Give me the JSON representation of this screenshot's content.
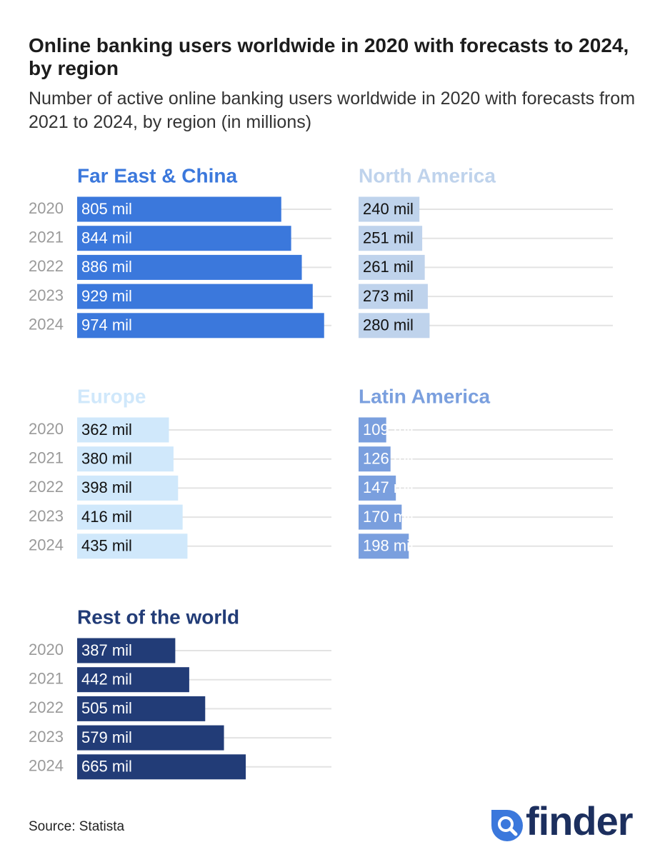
{
  "title": "Online banking users worldwide in 2020 with forecasts to 2024, by region",
  "subtitle": "Number of active online banking users worldwide in 2020 with forecasts from 2021 to 2024, by region (in millions)",
  "source": "Source: Statista",
  "brand": {
    "name": "finder",
    "color": "#1c2f5e",
    "icon": "search-magnifier-icon"
  },
  "chart_data": [
    {
      "type": "bar",
      "title": "Far East & China",
      "color": "#3b78dc",
      "label_color": "#ffffff",
      "categories": [
        "2020",
        "2021",
        "2022",
        "2023",
        "2024"
      ],
      "values": [
        805,
        844,
        886,
        929,
        974
      ],
      "labels": [
        "805 mil",
        "844 mil",
        "886 mil",
        "929 mil",
        "974 mil"
      ],
      "unit": "mil",
      "xlim": [
        0,
        1000
      ]
    },
    {
      "type": "bar",
      "title": "North America",
      "color": "#bfd3ec",
      "label_color": "#111111",
      "categories": [
        "2020",
        "2021",
        "2022",
        "2023",
        "2024"
      ],
      "values": [
        240,
        251,
        261,
        273,
        280
      ],
      "labels": [
        "240 mil",
        "251 mil",
        "261 mil",
        "273 mil",
        "280 mil"
      ],
      "unit": "mil",
      "xlim": [
        0,
        1000
      ]
    },
    {
      "type": "bar",
      "title": "Europe",
      "color": "#d0e8fb",
      "label_color": "#111111",
      "categories": [
        "2020",
        "2021",
        "2022",
        "2023",
        "2024"
      ],
      "values": [
        362,
        380,
        398,
        416,
        435
      ],
      "labels": [
        "362 mil",
        "380 mil",
        "398 mil",
        "416 mil",
        "435 mil"
      ],
      "unit": "mil",
      "xlim": [
        0,
        1000
      ]
    },
    {
      "type": "bar",
      "title": "Latin America",
      "color": "#7a9fde",
      "label_color": "#ffffff",
      "categories": [
        "2020",
        "2021",
        "2022",
        "2023",
        "2024"
      ],
      "values": [
        109,
        126,
        147,
        170,
        198
      ],
      "labels": [
        "109 mil",
        "126 mil",
        "147 mil",
        "170 mil",
        "198 mil"
      ],
      "unit": "mil",
      "xlim": [
        0,
        1000
      ]
    },
    {
      "type": "bar",
      "title": "Rest of the world",
      "color": "#223c77",
      "label_color": "#ffffff",
      "categories": [
        "2020",
        "2021",
        "2022",
        "2023",
        "2024"
      ],
      "values": [
        387,
        442,
        505,
        579,
        665
      ],
      "labels": [
        "387 mil",
        "442 mil",
        "505 mil",
        "579 mil",
        "665 mil"
      ],
      "unit": "mil",
      "xlim": [
        0,
        1000
      ]
    }
  ]
}
